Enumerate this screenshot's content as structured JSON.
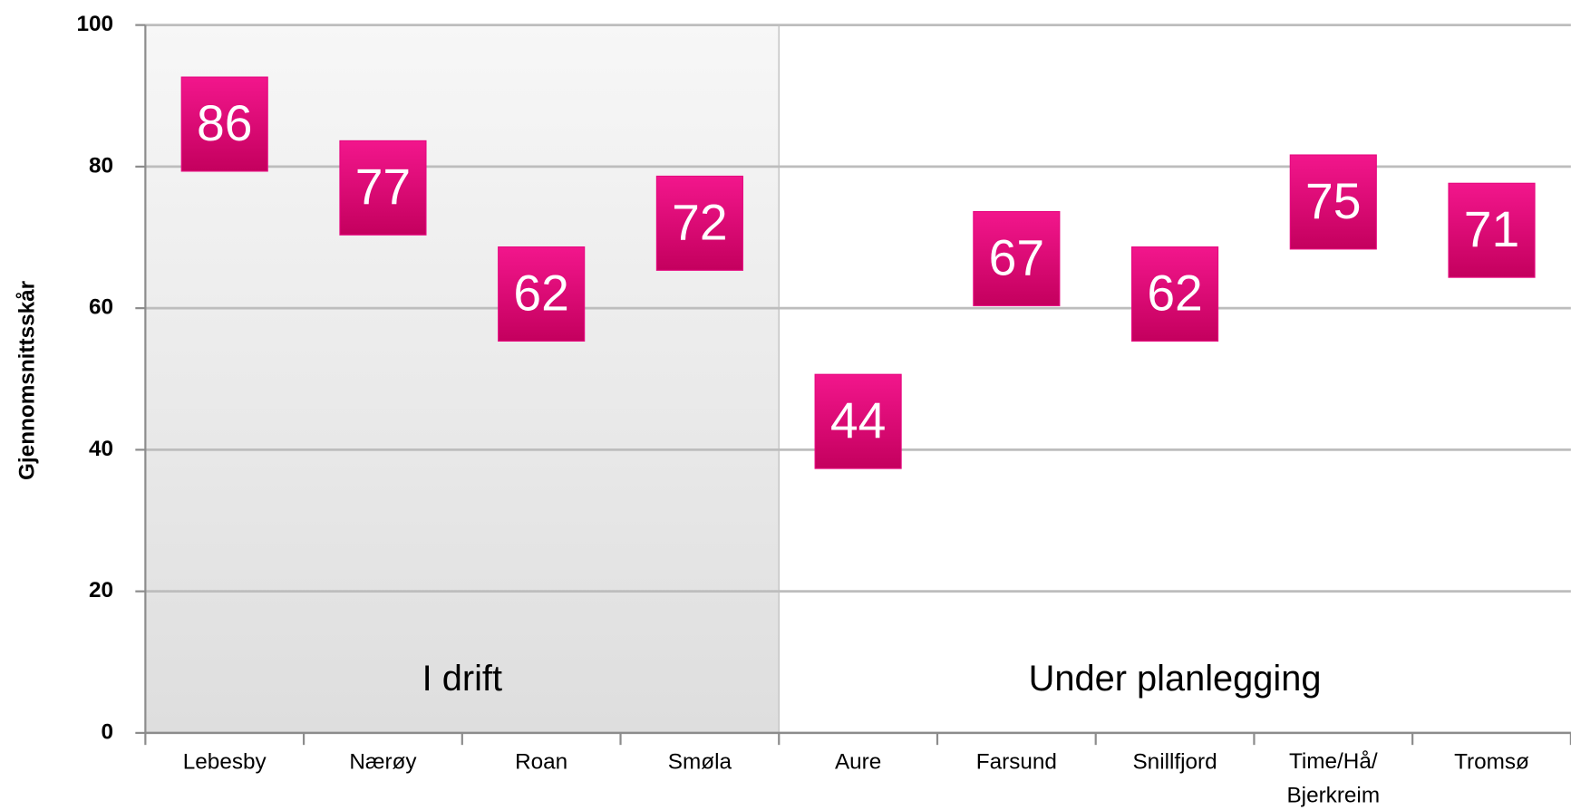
{
  "chart_data": {
    "type": "scatter",
    "y_label": "Gjennomsnittsskår",
    "categories": [
      "Lebesby",
      "Nærøy",
      "Roan",
      "Smøla",
      "Aure",
      "Farsund",
      "Snillfjord",
      "Time/Hå/ Bjerkreim",
      "Tromsø"
    ],
    "values": [
      86,
      77,
      62,
      72,
      44,
      67,
      62,
      75,
      71
    ],
    "color": "#e6077f",
    "annotations": [
      "I drift",
      "Under planlegging"
    ],
    "ylim": [
      0,
      100
    ],
    "yticks": [
      0,
      20,
      40,
      60,
      80,
      100
    ],
    "grid": true
  }
}
